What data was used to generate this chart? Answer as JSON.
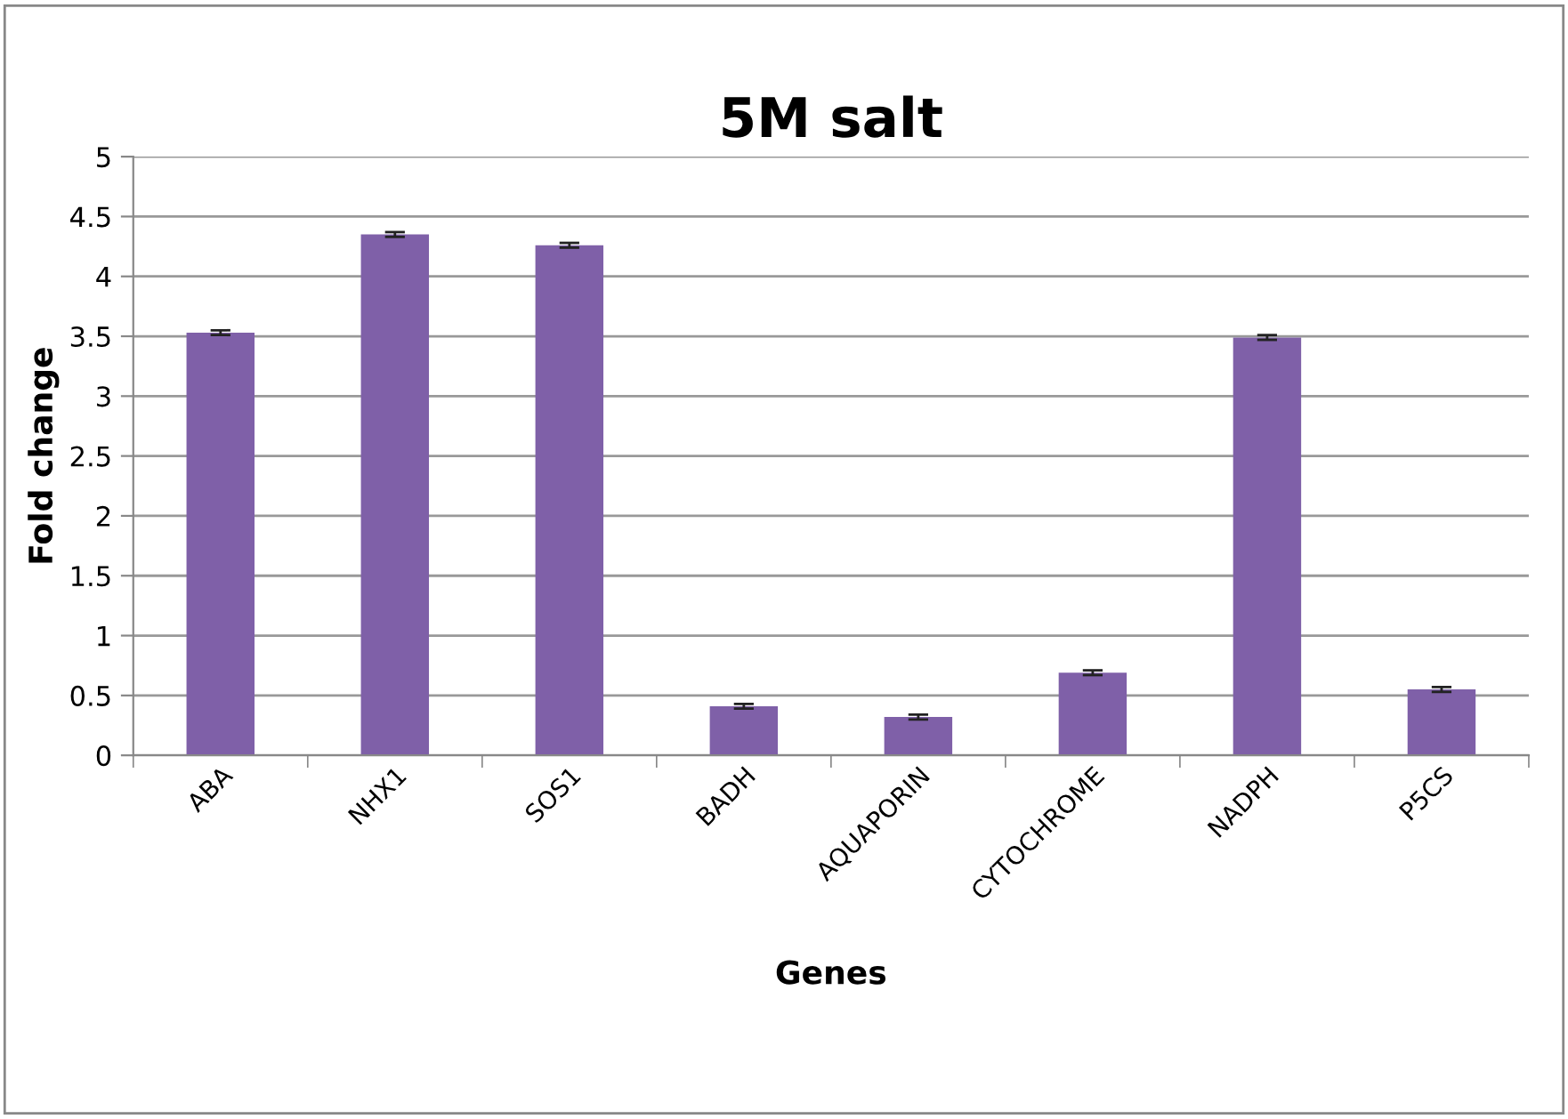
{
  "chart_data": {
    "type": "bar",
    "title": "5M salt",
    "xlabel": "Genes",
    "ylabel": "Fold change",
    "categories": [
      "ABA",
      "NHX1",
      "SOS1",
      "BADH",
      "AQUAPORIN",
      "CYTOCHROME",
      "NADPH",
      "P5CS"
    ],
    "values": [
      3.53,
      4.35,
      4.26,
      0.41,
      0.32,
      0.69,
      3.49,
      0.55
    ],
    "errors": [
      0.02,
      0.02,
      0.02,
      0.02,
      0.02,
      0.02,
      0.02,
      0.02
    ],
    "color": "#7f60a8",
    "ylim": [
      0,
      5
    ],
    "yticks": [
      0,
      0.5,
      1,
      1.5,
      2,
      2.5,
      3,
      3.5,
      4,
      4.5,
      5
    ],
    "grid": "y"
  }
}
